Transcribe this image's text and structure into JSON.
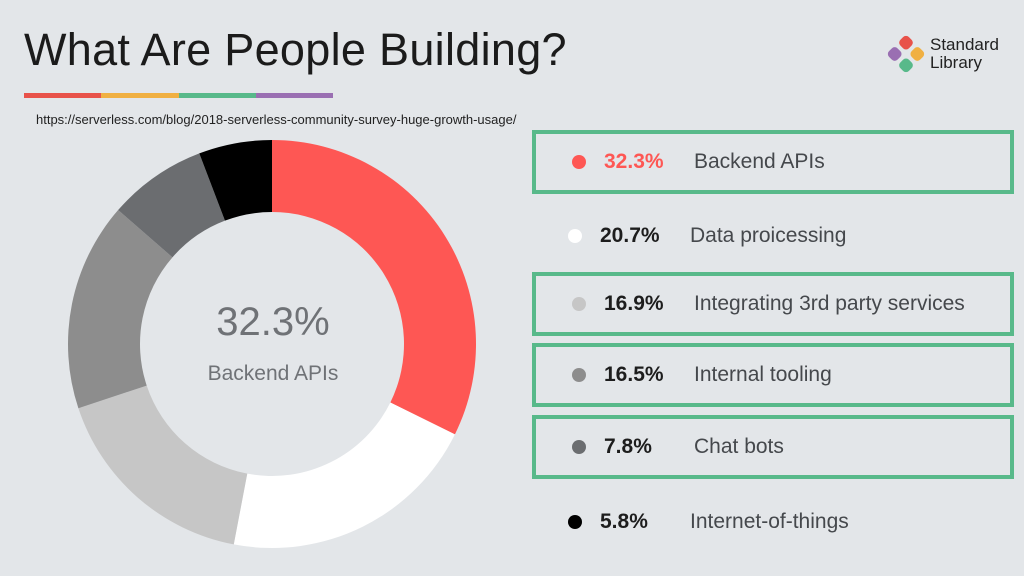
{
  "header": {
    "title": "What Are People Building?",
    "source_url": "https://serverless.com/blog/2018-serverless-community-survey-huge-growth-usage/",
    "underline_colors": [
      "#e8524a",
      "#f0b042",
      "#58b98a",
      "#9a6fb2"
    ]
  },
  "logo": {
    "line1": "Standard",
    "line2": "Library",
    "colors": [
      "#e8524a",
      "#f0b042",
      "#58b98a",
      "#9a6fb2"
    ]
  },
  "center": {
    "value": "32.3%",
    "label": "Backend APIs"
  },
  "chart_data": {
    "type": "pie",
    "variant": "donut",
    "title": "What Are People Building?",
    "categories": [
      "Backend APIs",
      "Data proicessing",
      "Integrating 3rd party services",
      "Internal tooling",
      "Chat bots",
      "Internet-of-things"
    ],
    "values": [
      32.3,
      20.7,
      16.9,
      16.5,
      7.8,
      5.8
    ],
    "value_labels": [
      "32.3%",
      "20.7%",
      "16.9%",
      "16.5%",
      "7.8%",
      "5.8%"
    ],
    "colors": [
      "#fe5754",
      "#ffffff",
      "#c6c6c6",
      "#8d8d8d",
      "#6b6d70",
      "#000000"
    ],
    "highlighted": [
      "Backend APIs",
      "Integrating 3rd party services",
      "Internal tooling",
      "Chat bots"
    ],
    "legend_placement": "right"
  }
}
